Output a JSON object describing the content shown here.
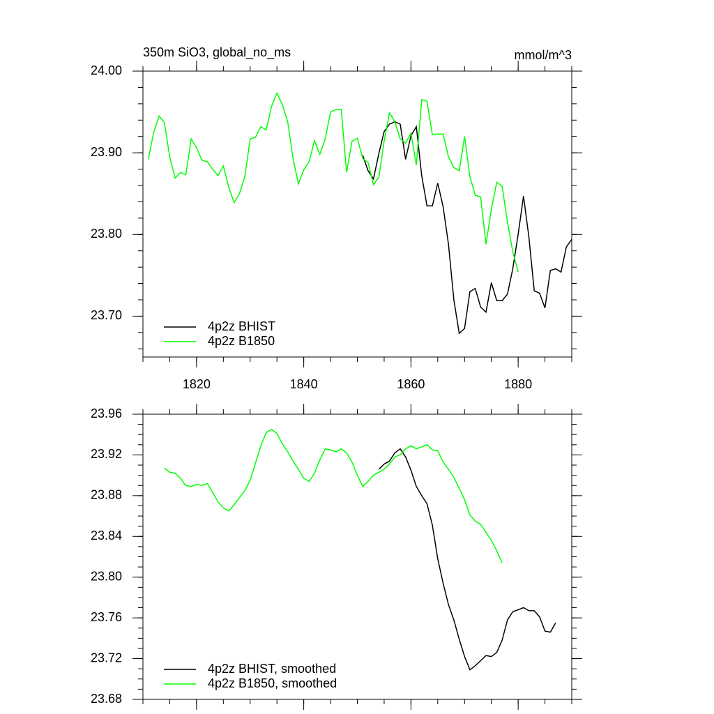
{
  "chart_data": [
    {
      "type": "line",
      "title": "350m SiO3, global_no_ms",
      "units_label": "mmol/m^3",
      "xlim": [
        1810,
        1890
      ],
      "xticks": [
        1820,
        1840,
        1860,
        1880
      ],
      "show_xtick_labels": true,
      "ylim": [
        23.65,
        24.0
      ],
      "yticks": [
        {
          "value": 23.7,
          "label": "23.70"
        },
        {
          "value": 23.8,
          "label": "23.80"
        },
        {
          "value": 23.9,
          "label": "23.90"
        },
        {
          "value": 24.0,
          "label": "24.00"
        }
      ],
      "y_minor_per_major": 4,
      "x_minor_per_major": 3,
      "legend": "bottom-left",
      "series": [
        {
          "name": "4p2z BHIST",
          "color": "#000000",
          "x": [
            1851,
            1852,
            1853,
            1854,
            1855,
            1856,
            1857,
            1858,
            1859,
            1860,
            1861,
            1862,
            1863,
            1864,
            1865,
            1866,
            1867,
            1868,
            1869,
            1870,
            1871,
            1872,
            1873,
            1874,
            1875,
            1876,
            1877,
            1878,
            1879,
            1880,
            1881,
            1882,
            1883,
            1884,
            1885,
            1886,
            1887,
            1888,
            1889,
            1890
          ],
          "values": [
            23.897,
            23.878,
            23.868,
            23.899,
            23.926,
            23.935,
            23.938,
            23.935,
            23.892,
            23.921,
            23.932,
            23.872,
            23.835,
            23.835,
            23.863,
            23.834,
            23.788,
            23.72,
            23.679,
            23.685,
            23.73,
            23.734,
            23.711,
            23.705,
            23.741,
            23.719,
            23.719,
            23.727,
            23.758,
            23.8,
            23.847,
            23.797,
            23.731,
            23.728,
            23.71,
            23.756,
            23.758,
            23.754,
            23.785,
            23.794
          ]
        },
        {
          "name": "4p2z B1850",
          "color": "#00ff00",
          "x": [
            1811,
            1812,
            1813,
            1814,
            1815,
            1816,
            1817,
            1818,
            1819,
            1820,
            1821,
            1822,
            1823,
            1824,
            1825,
            1826,
            1827,
            1828,
            1829,
            1830,
            1831,
            1832,
            1833,
            1834,
            1835,
            1836,
            1837,
            1838,
            1839,
            1840,
            1841,
            1842,
            1843,
            1844,
            1845,
            1846,
            1847,
            1848,
            1849,
            1850,
            1851,
            1852,
            1853,
            1854,
            1855,
            1856,
            1857,
            1858,
            1859,
            1860,
            1861,
            1862,
            1863,
            1864,
            1865,
            1866,
            1867,
            1868,
            1869,
            1870,
            1871,
            1872,
            1873,
            1874,
            1875,
            1876,
            1877,
            1878,
            1879,
            1880
          ],
          "values": [
            23.892,
            23.925,
            23.945,
            23.937,
            23.895,
            23.869,
            23.876,
            23.873,
            23.917,
            23.906,
            23.891,
            23.889,
            23.88,
            23.872,
            23.884,
            23.858,
            23.839,
            23.85,
            23.871,
            23.917,
            23.919,
            23.932,
            23.928,
            23.957,
            23.973,
            23.959,
            23.938,
            23.893,
            23.862,
            23.879,
            23.889,
            23.915,
            23.898,
            23.917,
            23.95,
            23.953,
            23.953,
            23.876,
            23.914,
            23.918,
            23.893,
            23.888,
            23.861,
            23.87,
            23.914,
            23.949,
            23.938,
            23.917,
            23.912,
            23.924,
            23.885,
            23.965,
            23.963,
            23.922,
            23.923,
            23.923,
            23.895,
            23.882,
            23.878,
            23.92,
            23.871,
            23.848,
            23.846,
            23.788,
            23.831,
            23.864,
            23.859,
            23.815,
            23.779,
            23.754
          ]
        }
      ]
    },
    {
      "type": "line",
      "xlim": [
        1810,
        1890
      ],
      "xticks": [
        1820,
        1840,
        1860,
        1880
      ],
      "show_xtick_labels": false,
      "ylim": [
        23.68,
        23.96
      ],
      "yticks": [
        {
          "value": 23.68,
          "label": "23.68"
        },
        {
          "value": 23.72,
          "label": "23.72"
        },
        {
          "value": 23.76,
          "label": "23.76"
        },
        {
          "value": 23.8,
          "label": "23.80"
        },
        {
          "value": 23.84,
          "label": "23.84"
        },
        {
          "value": 23.88,
          "label": "23.88"
        },
        {
          "value": 23.92,
          "label": "23.92"
        },
        {
          "value": 23.96,
          "label": "23.96"
        }
      ],
      "y_minor_per_major": 3,
      "x_minor_per_major": 3,
      "legend": "bottom-left",
      "series": [
        {
          "name": "4p2z BHIST, smoothed",
          "color": "#000000",
          "x": [
            1854,
            1855,
            1856,
            1857,
            1858,
            1859,
            1860,
            1861,
            1862,
            1863,
            1864,
            1865,
            1866,
            1867,
            1868,
            1869,
            1870,
            1871,
            1872,
            1873,
            1874,
            1875,
            1876,
            1877,
            1878,
            1879,
            1880,
            1881,
            1882,
            1883,
            1884,
            1885,
            1886,
            1887
          ],
          "values": [
            23.906,
            23.911,
            23.914,
            23.922,
            23.926,
            23.918,
            23.905,
            23.889,
            23.88,
            23.872,
            23.851,
            23.818,
            23.794,
            23.773,
            23.758,
            23.739,
            23.722,
            23.709,
            23.713,
            23.718,
            23.723,
            23.722,
            23.726,
            23.738,
            23.758,
            23.766,
            23.768,
            23.77,
            23.767,
            23.767,
            23.761,
            23.747,
            23.746,
            23.755
          ]
        },
        {
          "name": "4p2z B1850, smoothed",
          "color": "#00ff00",
          "x": [
            1814,
            1815,
            1816,
            1817,
            1818,
            1819,
            1820,
            1821,
            1822,
            1823,
            1824,
            1825,
            1826,
            1827,
            1828,
            1829,
            1830,
            1831,
            1832,
            1833,
            1834,
            1835,
            1836,
            1837,
            1838,
            1839,
            1840,
            1841,
            1842,
            1843,
            1844,
            1845,
            1846,
            1847,
            1848,
            1849,
            1850,
            1851,
            1852,
            1853,
            1854,
            1855,
            1856,
            1857,
            1858,
            1859,
            1860,
            1861,
            1862,
            1863,
            1864,
            1865,
            1866,
            1867,
            1868,
            1869,
            1870,
            1871,
            1872,
            1873,
            1874,
            1875,
            1876,
            1877
          ],
          "values": [
            23.907,
            23.903,
            23.902,
            23.897,
            23.89,
            23.889,
            23.891,
            23.89,
            23.892,
            23.883,
            23.874,
            23.868,
            23.865,
            23.871,
            23.878,
            23.885,
            23.895,
            23.912,
            23.929,
            23.942,
            23.945,
            23.941,
            23.931,
            23.923,
            23.914,
            23.906,
            23.897,
            23.894,
            23.902,
            23.915,
            23.926,
            23.925,
            23.923,
            23.926,
            23.922,
            23.913,
            23.9,
            23.889,
            23.894,
            23.9,
            23.903,
            23.906,
            23.911,
            23.918,
            23.92,
            23.926,
            23.929,
            23.926,
            23.928,
            23.93,
            23.925,
            23.924,
            23.913,
            23.906,
            23.898,
            23.887,
            23.876,
            23.861,
            23.855,
            23.852,
            23.844,
            23.836,
            23.826,
            23.814
          ]
        }
      ]
    }
  ]
}
